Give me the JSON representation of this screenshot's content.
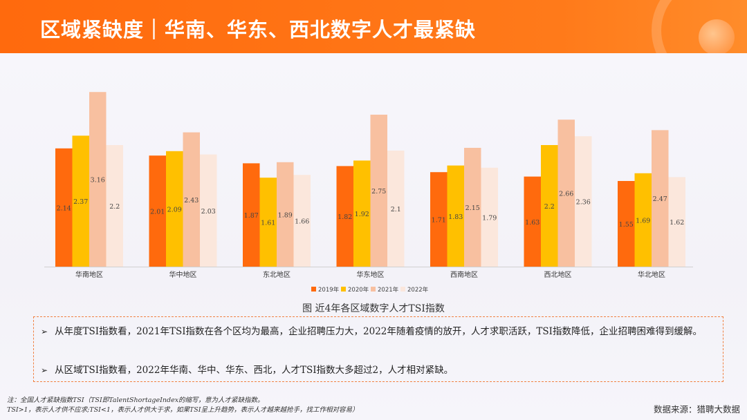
{
  "header": {
    "title": "区域紧缺度｜华南、华东、西北数字人才最紧缺"
  },
  "chart_data": {
    "type": "bar",
    "title": "图 近4年各区域数字人才TSI指数",
    "categories": [
      "华南地区",
      "华中地区",
      "东北地区",
      "华东地区",
      "西南地区",
      "西北地区",
      "华北地区"
    ],
    "series": [
      {
        "name": "2019年",
        "color": "#ff6a0d",
        "values": [
          2.14,
          2.01,
          1.87,
          1.82,
          1.71,
          1.63,
          1.55
        ]
      },
      {
        "name": "2020年",
        "color": "#ffc000",
        "values": [
          2.37,
          2.09,
          1.61,
          1.92,
          1.83,
          2.2,
          1.69
        ]
      },
      {
        "name": "2021年",
        "color": "#f8c0a0",
        "values": [
          3.16,
          2.43,
          1.89,
          2.75,
          2.15,
          2.66,
          2.47
        ]
      },
      {
        "name": "2022年",
        "color": "#fbe7dc",
        "values": [
          2.2,
          2.03,
          1.66,
          2.1,
          1.79,
          2.36,
          1.62
        ]
      }
    ],
    "value_labels": [
      [
        "2.14",
        "2.37",
        "3.16",
        "2.2"
      ],
      [
        "2.01",
        "2.09",
        "2.43",
        "2.03"
      ],
      [
        "1.87",
        "1.61",
        "1.89",
        "1.66"
      ],
      [
        "1.82",
        "1.92",
        "2.75",
        "2.1"
      ],
      [
        "1.71",
        "1.83",
        "2.15",
        "1.79"
      ],
      [
        "1.63",
        "2.2",
        "2.66",
        "2.36"
      ],
      [
        "1.55",
        "1.69",
        "2.47",
        "1.62"
      ]
    ],
    "legend_position": "bottom",
    "grid": false
  },
  "notes": [
    "从年度TSI指数看，2021年TSI指数在各个区均为最高，企业招聘压力大，2022年随着疫情的放开，人才求职活跃，TSI指数降低，企业招聘困难得到缓解。",
    "从区域TSI指数看，2022年华南、华中、华东、西北，人才TSI指数大多超过2，人才相对紧缺。"
  ],
  "footnote": {
    "line1": "注：全国人才紧缺指数TSI（TSI即TalentShortageIndex的缩写，意为人才紧缺指数。",
    "line2": "TSI>1，表示人才供不应求;TSI<1，表示人才供大于求，如果TSI呈上升趋势，表示人才越来越抢手，找工作相对容易）"
  },
  "source": "数据来源：猎聘大数据"
}
